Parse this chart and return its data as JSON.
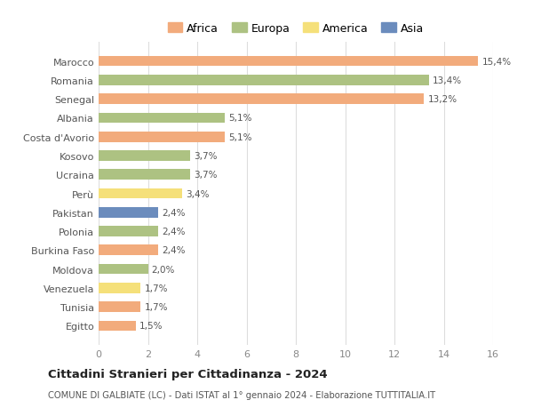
{
  "countries": [
    "Marocco",
    "Romania",
    "Senegal",
    "Albania",
    "Costa d'Avorio",
    "Kosovo",
    "Ucraina",
    "Perù",
    "Pakistan",
    "Polonia",
    "Burkina Faso",
    "Moldova",
    "Venezuela",
    "Tunisia",
    "Egitto"
  ],
  "values": [
    15.4,
    13.4,
    13.2,
    5.1,
    5.1,
    3.7,
    3.7,
    3.4,
    2.4,
    2.4,
    2.4,
    2.0,
    1.7,
    1.7,
    1.5
  ],
  "labels": [
    "15,4%",
    "13,4%",
    "13,2%",
    "5,1%",
    "5,1%",
    "3,7%",
    "3,7%",
    "3,4%",
    "2,4%",
    "2,4%",
    "2,4%",
    "2,0%",
    "1,7%",
    "1,7%",
    "1,5%"
  ],
  "colors": [
    "#f2ab7c",
    "#adc282",
    "#f2ab7c",
    "#adc282",
    "#f2ab7c",
    "#adc282",
    "#adc282",
    "#f5e07a",
    "#6b8cbd",
    "#adc282",
    "#f2ab7c",
    "#adc282",
    "#f5e07a",
    "#f2ab7c",
    "#f2ab7c"
  ],
  "continent_colors": {
    "Africa": "#f2ab7c",
    "Europa": "#adc282",
    "America": "#f5e07a",
    "Asia": "#6b8cbd"
  },
  "legend_labels": [
    "Africa",
    "Europa",
    "America",
    "Asia"
  ],
  "xlim": [
    0,
    16
  ],
  "xticks": [
    0,
    2,
    4,
    6,
    8,
    10,
    12,
    14,
    16
  ],
  "title": "Cittadini Stranieri per Cittadinanza - 2024",
  "subtitle": "COMUNE DI GALBIATE (LC) - Dati ISTAT al 1° gennaio 2024 - Elaborazione TUTTITALIA.IT",
  "background_color": "#ffffff",
  "grid_color": "#dddddd",
  "bar_height": 0.55
}
